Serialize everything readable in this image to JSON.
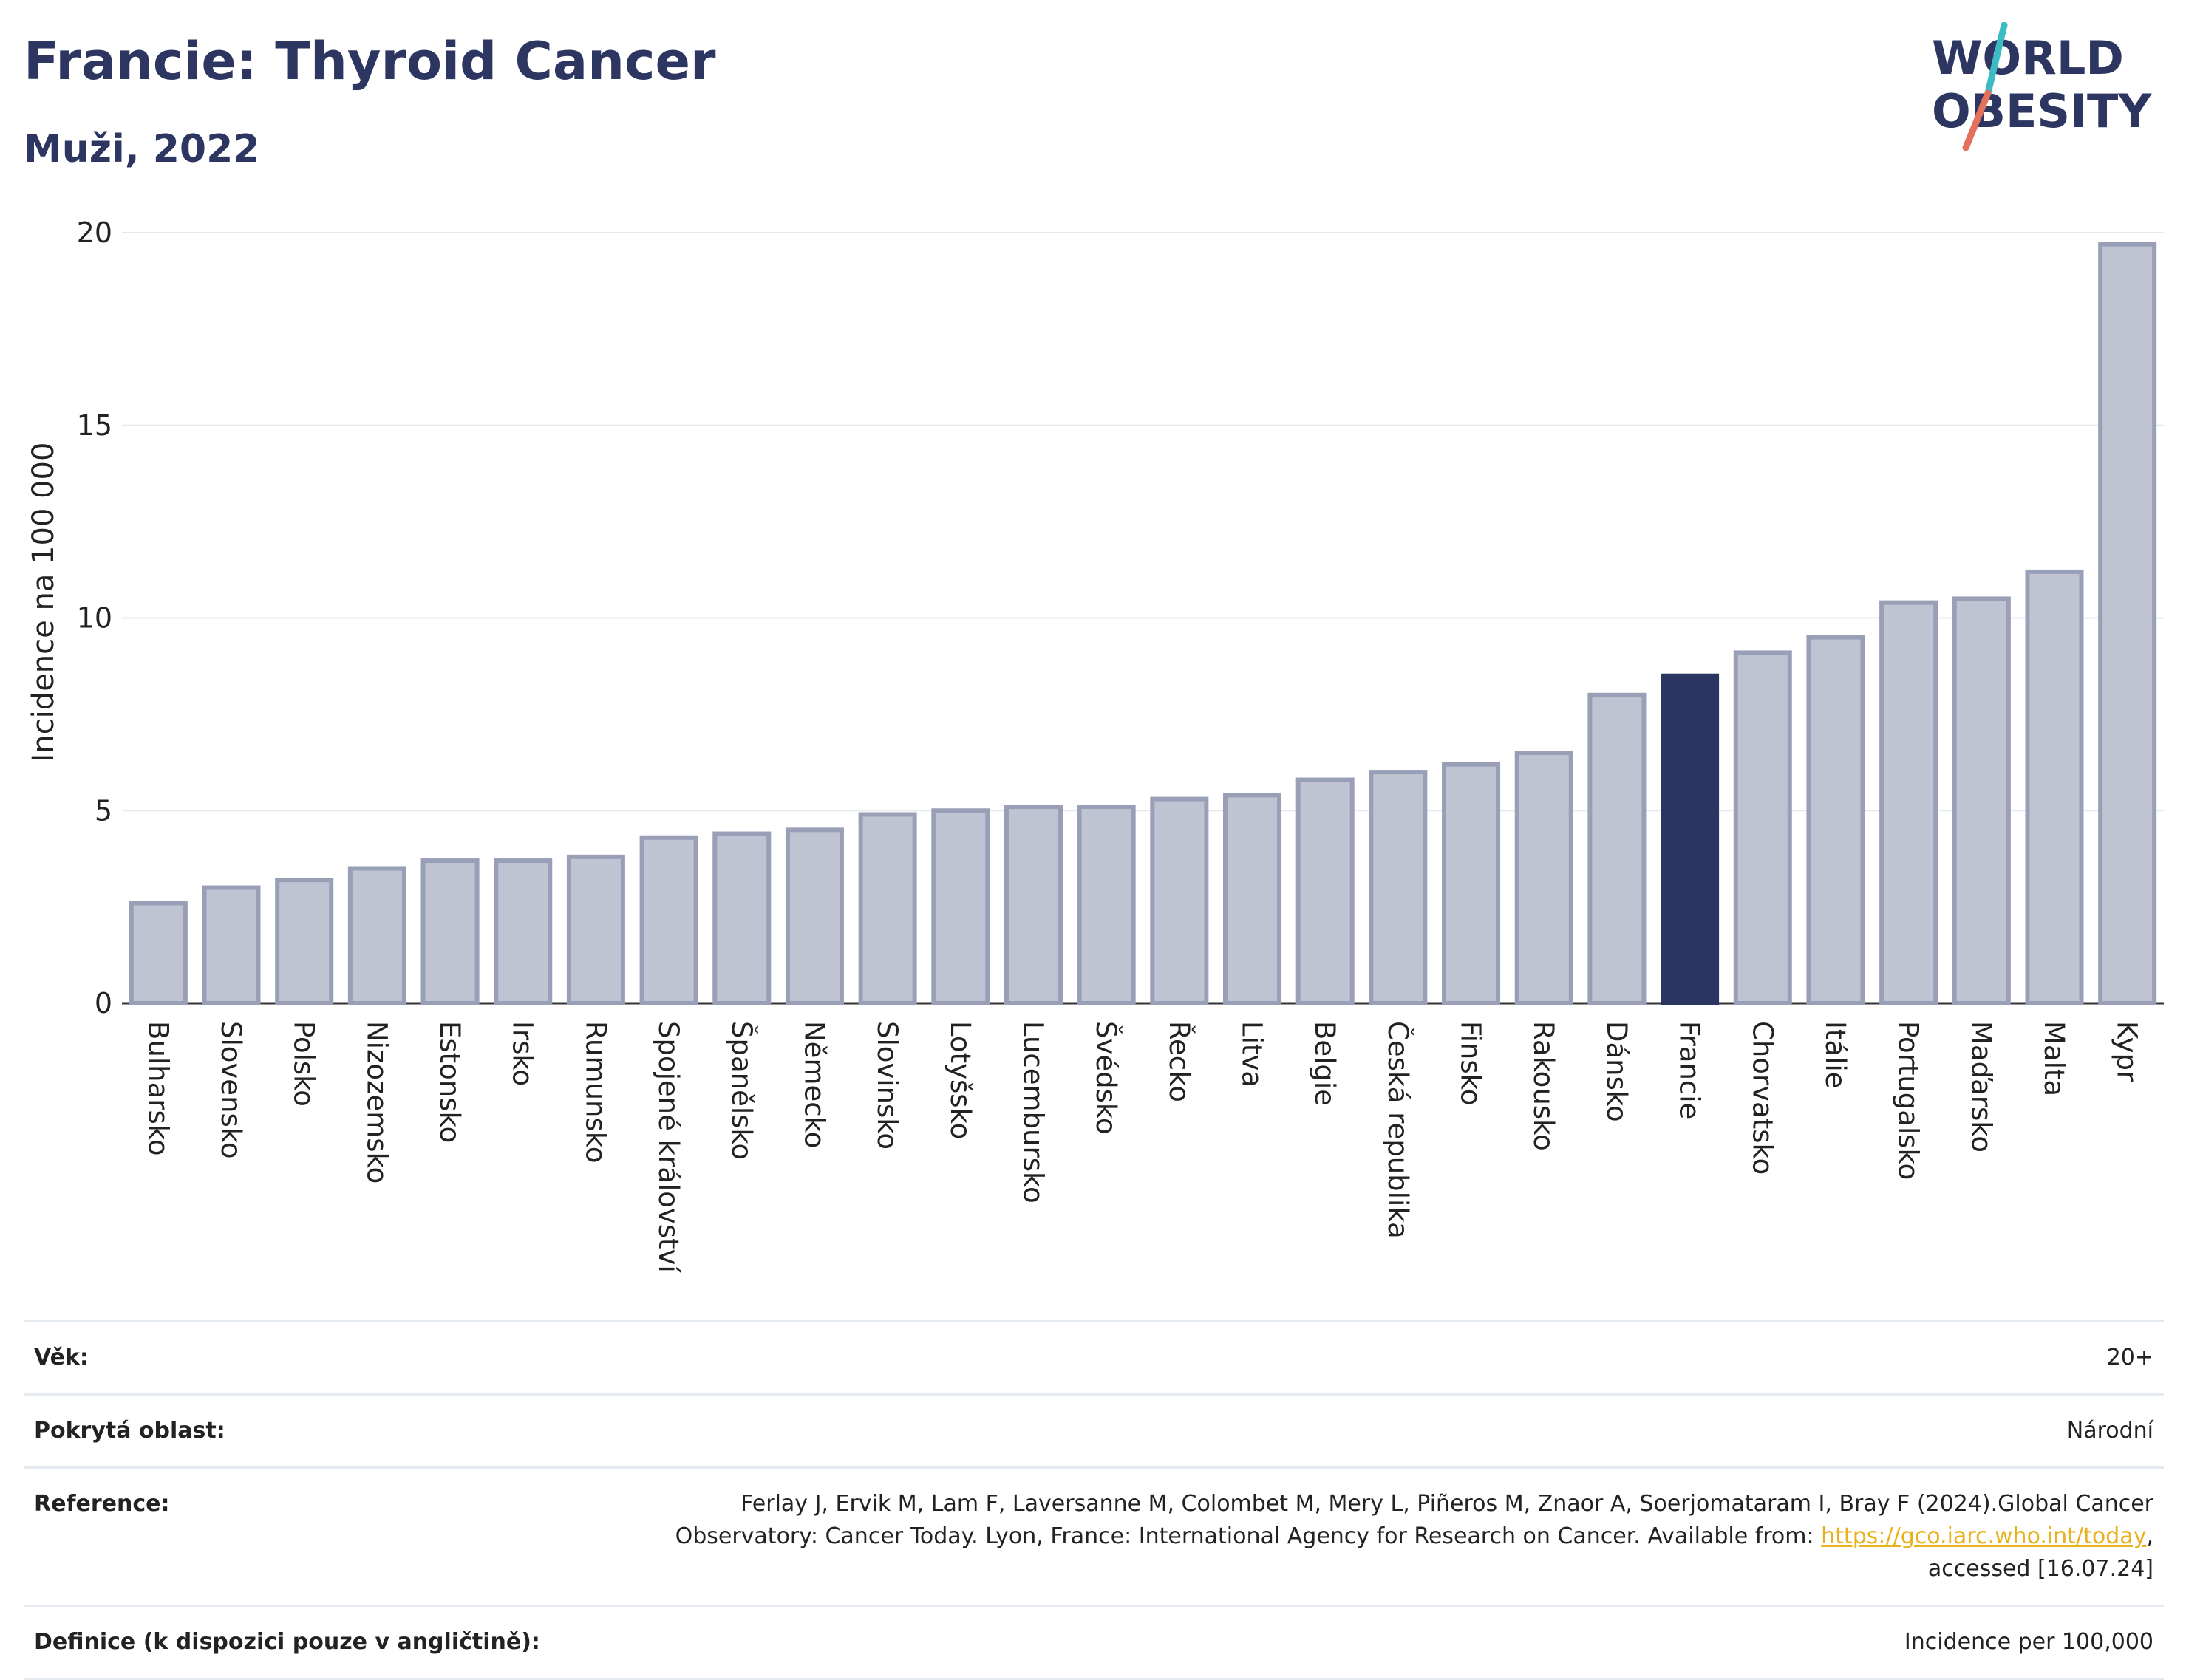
{
  "title": "Francie: Thyroid Cancer",
  "subtitle": "Muži, 2022",
  "logo": {
    "line1": "WORLD",
    "line2": "OBESITY"
  },
  "colors": {
    "bar_fill": "#c0c3d1",
    "bar_stroke": "#9a9fb8",
    "highlight": "#2b3562",
    "grid": "#e6e8ef",
    "text": "#222222",
    "title": "#2d3561",
    "link": "#e8b21e",
    "logo_teal": "#3bbcc4",
    "logo_coral": "#e4715c"
  },
  "chart_data": {
    "type": "bar",
    "title": "Francie: Thyroid Cancer",
    "subtitle": "Muži, 2022",
    "xlabel": "",
    "ylabel": "Incidence na 100 000",
    "ylim": [
      0,
      20
    ],
    "yticks": [
      0,
      5,
      10,
      15,
      20
    ],
    "grid": true,
    "highlight": "Francie",
    "categories": [
      "Bulharsko",
      "Slovensko",
      "Polsko",
      "Nizozemsko",
      "Estonsko",
      "Irsko",
      "Rumunsko",
      "Spojené království",
      "Španělsko",
      "Německo",
      "Slovinsko",
      "Lotyšsko",
      "Lucembursko",
      "Švédsko",
      "Řecko",
      "Litva",
      "Belgie",
      "Česká republika",
      "Finsko",
      "Rakousko",
      "Dánsko",
      "Francie",
      "Chorvatsko",
      "Itálie",
      "Portugalsko",
      "Maďarsko",
      "Malta",
      "Kypr"
    ],
    "values": [
      2.6,
      3.0,
      3.2,
      3.5,
      3.7,
      3.7,
      3.8,
      4.3,
      4.4,
      4.5,
      4.9,
      5.0,
      5.1,
      5.1,
      5.3,
      5.4,
      5.8,
      6.0,
      6.2,
      6.5,
      8.0,
      8.5,
      9.1,
      9.5,
      10.4,
      10.5,
      11.2,
      19.7
    ]
  },
  "meta": [
    {
      "label": "Věk:",
      "value": "20+"
    },
    {
      "label": "Pokrytá oblast:",
      "value": "Národní"
    },
    {
      "label": "Reference:",
      "value_before": "Ferlay J, Ervik M, Lam F, Laversanne M, Colombet M, Mery L, Piñeros M, Znaor A, Soerjomataram I, Bray F (2024).Global Cancer Observatory: Cancer Today. Lyon, France: International Agency for Research on Cancer. Available from: ",
      "link": "https://gco.iarc.who.int/today",
      "value_after": ", accessed [16.07.24]"
    },
    {
      "label": "Definice (k dispozici pouze v angličtině):",
      "value": "Incidence per 100,000"
    }
  ]
}
